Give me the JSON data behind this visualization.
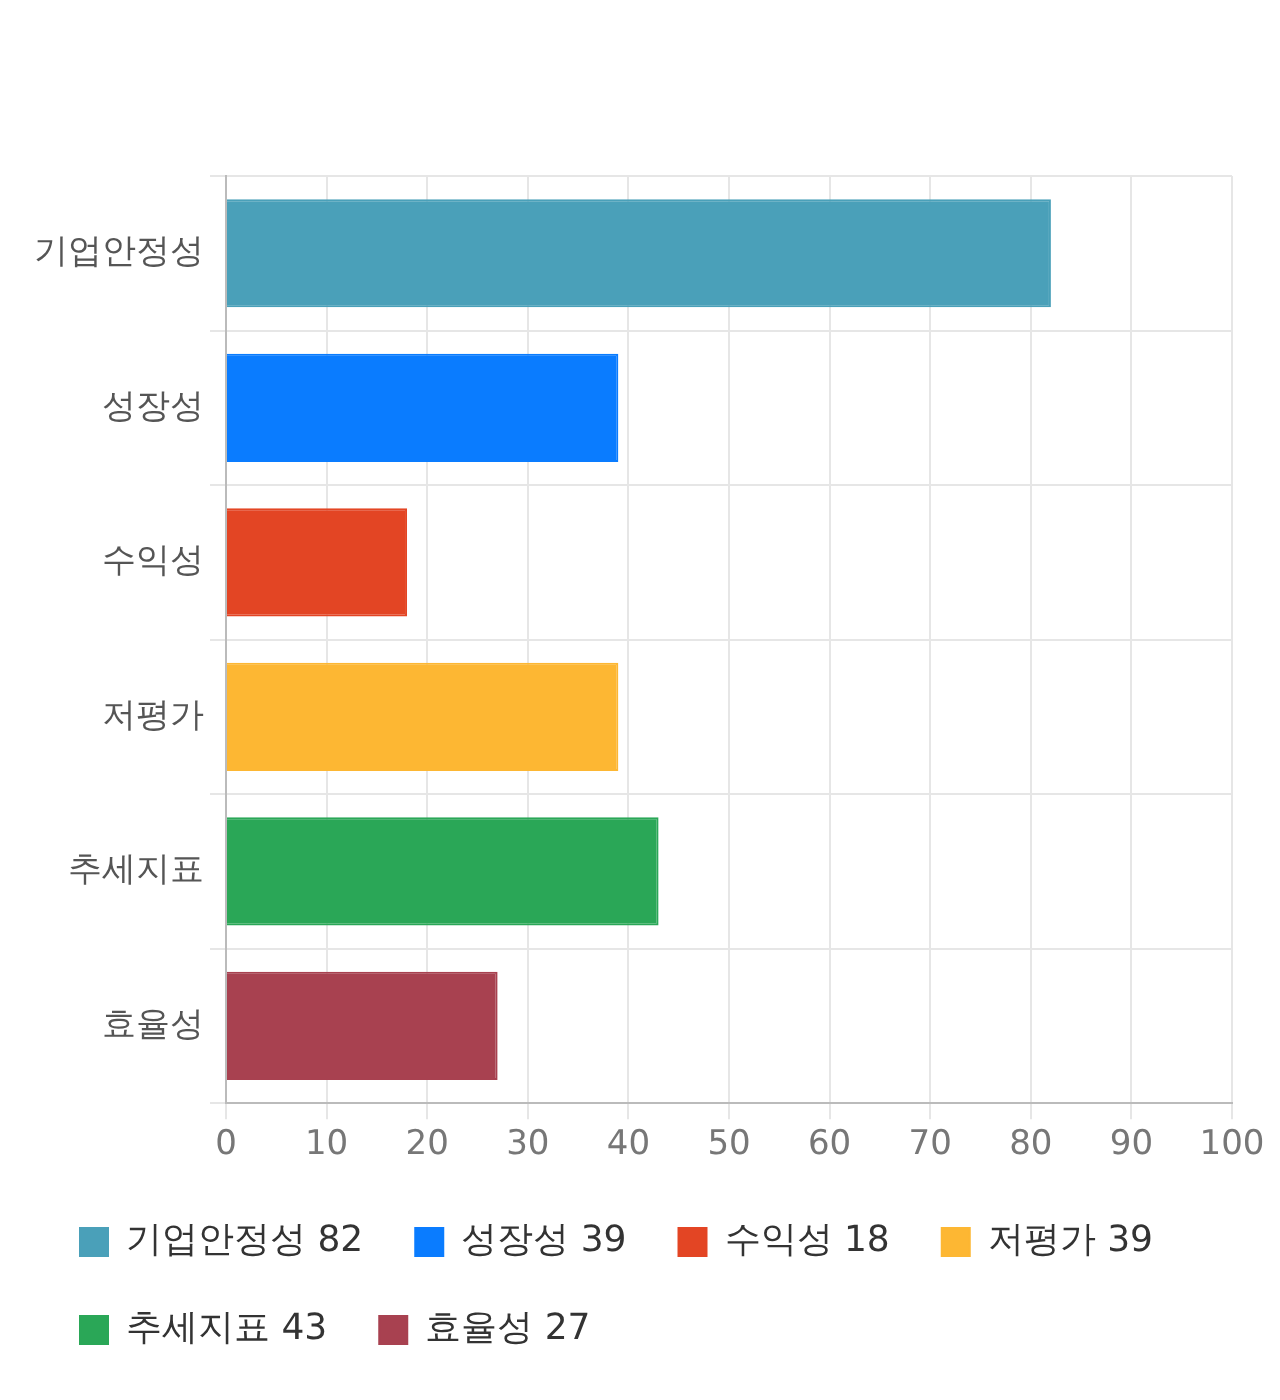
{
  "chart_data": {
    "type": "bar",
    "orientation": "horizontal",
    "categories": [
      "기업안정성",
      "성장성",
      "수익성",
      "저평가",
      "추세지표",
      "효율성"
    ],
    "series": [
      {
        "name": "기업안정성 82",
        "color": "#4aa0b9",
        "values": [
          82,
          null,
          null,
          null,
          null,
          null
        ]
      },
      {
        "name": "성장성 39",
        "color": "#0a7cff",
        "values": [
          null,
          39,
          null,
          null,
          null,
          null
        ]
      },
      {
        "name": "수익성 18",
        "color": "#e34524",
        "values": [
          null,
          null,
          18,
          null,
          null,
          null
        ]
      },
      {
        "name": "저평가 39",
        "color": "#fdb733",
        "values": [
          null,
          null,
          null,
          39,
          null,
          null
        ]
      },
      {
        "name": "추세지표 43",
        "color": "#2aa757",
        "values": [
          null,
          null,
          null,
          null,
          43,
          null
        ]
      },
      {
        "name": "효율성 27",
        "color": "#a84150",
        "values": [
          null,
          null,
          null,
          null,
          null,
          27
        ]
      }
    ],
    "xlim": [
      0,
      100
    ],
    "xticks": [
      0,
      10,
      20,
      30,
      40,
      50,
      60,
      70,
      80,
      90,
      100
    ],
    "grid": true,
    "legend": "bottom"
  }
}
